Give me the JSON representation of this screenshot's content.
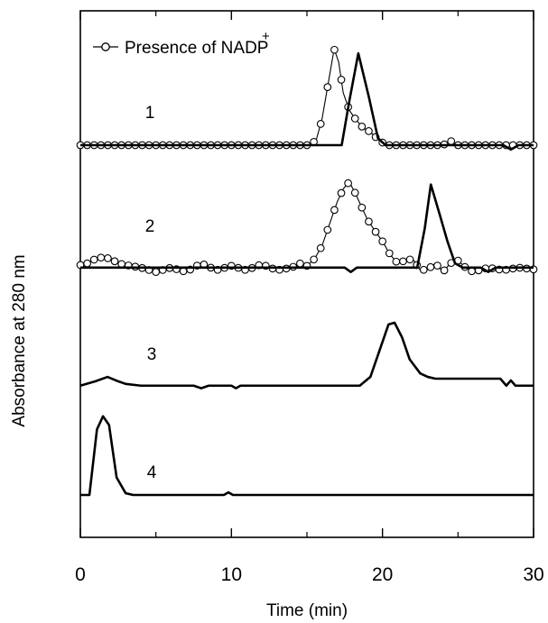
{
  "chart_data": {
    "type": "line",
    "title": "",
    "xlabel": "Time (min)",
    "ylabel": "Absorbance at 280 nm",
    "xlim": [
      0,
      30
    ],
    "x_ticks": [
      0,
      10,
      20,
      30
    ],
    "y_ticks_shown": false,
    "grid": false,
    "legend": {
      "placement": "top-left",
      "marker": "open-circle",
      "text": "Presence of NADP",
      "superscript": "+"
    },
    "traces": [
      {
        "label": "1",
        "baseline_offset": 4.0,
        "solid": {
          "style": "solid",
          "points": [
            [
              0,
              0
            ],
            [
              17.3,
              0
            ],
            [
              17.8,
              0.5
            ],
            [
              18.4,
              1.05
            ],
            [
              19.1,
              0.55
            ],
            [
              19.7,
              0.08
            ],
            [
              20.2,
              0
            ],
            [
              28,
              0
            ],
            [
              28.5,
              -0.05
            ],
            [
              29,
              0
            ],
            [
              30,
              0
            ]
          ]
        },
        "nadp": {
          "style": "open-circle-markers",
          "points": [
            [
              0,
              0
            ],
            [
              15,
              0
            ],
            [
              15.6,
              0.05
            ],
            [
              16,
              0.3
            ],
            [
              16.4,
              0.7
            ],
            [
              16.8,
              1.1
            ],
            [
              17.1,
              0.95
            ],
            [
              17.4,
              0.6
            ],
            [
              17.8,
              0.4
            ],
            [
              18.2,
              0.3
            ],
            [
              18.7,
              0.2
            ],
            [
              19.2,
              0.15
            ],
            [
              19.8,
              0.05
            ],
            [
              20.3,
              0
            ],
            [
              24,
              0
            ],
            [
              24.5,
              0.05
            ],
            [
              25,
              0
            ],
            [
              30,
              0
            ]
          ]
        }
      },
      {
        "label": "2",
        "baseline_offset": 2.6,
        "solid": {
          "style": "solid",
          "points": [
            [
              0,
              0
            ],
            [
              17.5,
              0
            ],
            [
              17.9,
              -0.05
            ],
            [
              18.3,
              0
            ],
            [
              22.3,
              0
            ],
            [
              22.8,
              0.45
            ],
            [
              23.2,
              0.95
            ],
            [
              23.8,
              0.6
            ],
            [
              24.3,
              0.3
            ],
            [
              24.8,
              0.05
            ],
            [
              25.3,
              0
            ],
            [
              26.5,
              0
            ],
            [
              27,
              -0.05
            ],
            [
              27.5,
              0
            ],
            [
              30,
              0
            ]
          ]
        },
        "nadp": {
          "style": "open-circle-markers",
          "points": [
            [
              0,
              0.03
            ],
            [
              0.5,
              0.05
            ],
            [
              1,
              0.1
            ],
            [
              1.5,
              0.12
            ],
            [
              2,
              0.1
            ],
            [
              2.5,
              0.05
            ],
            [
              3,
              0.03
            ],
            [
              4,
              0
            ],
            [
              5,
              -0.05
            ],
            [
              6,
              0
            ],
            [
              7,
              -0.05
            ],
            [
              8,
              0.05
            ],
            [
              9,
              -0.03
            ],
            [
              10,
              0.02
            ],
            [
              11,
              -0.03
            ],
            [
              12,
              0.04
            ],
            [
              13,
              -0.03
            ],
            [
              14,
              0
            ],
            [
              14.5,
              0.05
            ],
            [
              15,
              0.02
            ],
            [
              15.5,
              0.1
            ],
            [
              16,
              0.25
            ],
            [
              16.5,
              0.5
            ],
            [
              17,
              0.75
            ],
            [
              17.4,
              0.9
            ],
            [
              17.8,
              0.98
            ],
            [
              18.2,
              0.85
            ],
            [
              18.6,
              0.7
            ],
            [
              19,
              0.55
            ],
            [
              19.5,
              0.42
            ],
            [
              20,
              0.3
            ],
            [
              20.5,
              0.15
            ],
            [
              21,
              0.05
            ],
            [
              21.5,
              0.08
            ],
            [
              22,
              0.1
            ],
            [
              22.5,
              -0.03
            ],
            [
              23,
              -0.02
            ],
            [
              23.5,
              0.05
            ],
            [
              24,
              -0.05
            ],
            [
              24.5,
              0.05
            ],
            [
              25,
              0.08
            ],
            [
              25.5,
              0
            ],
            [
              26,
              -0.05
            ],
            [
              27,
              0
            ],
            [
              28,
              -0.03
            ],
            [
              29,
              0
            ],
            [
              30,
              -0.02
            ]
          ]
        }
      },
      {
        "label": "3",
        "baseline_offset": 1.25,
        "solid": {
          "style": "solid",
          "points": [
            [
              0,
              0
            ],
            [
              1,
              0.05
            ],
            [
              1.8,
              0.1
            ],
            [
              2.5,
              0.05
            ],
            [
              3,
              0.02
            ],
            [
              4,
              0
            ],
            [
              7.5,
              0
            ],
            [
              8,
              -0.03
            ],
            [
              8.5,
              0
            ],
            [
              10,
              0
            ],
            [
              10.3,
              -0.03
            ],
            [
              10.6,
              0
            ],
            [
              18.5,
              0
            ],
            [
              19.2,
              0.1
            ],
            [
              19.8,
              0.4
            ],
            [
              20.4,
              0.7
            ],
            [
              20.8,
              0.72
            ],
            [
              21.3,
              0.55
            ],
            [
              21.8,
              0.3
            ],
            [
              22.5,
              0.14
            ],
            [
              23,
              0.1
            ],
            [
              23.5,
              0.08
            ],
            [
              24.5,
              0.08
            ],
            [
              27.8,
              0.08
            ],
            [
              28.2,
              0
            ],
            [
              28.5,
              0.06
            ],
            [
              28.8,
              0
            ],
            [
              30,
              0
            ]
          ]
        }
      },
      {
        "label": "4",
        "baseline_offset": 0,
        "solid": {
          "style": "solid",
          "points": [
            [
              0,
              0
            ],
            [
              0.6,
              0
            ],
            [
              1.1,
              0.75
            ],
            [
              1.5,
              0.9
            ],
            [
              1.9,
              0.8
            ],
            [
              2.4,
              0.2
            ],
            [
              3,
              0.02
            ],
            [
              3.5,
              0
            ],
            [
              9.5,
              0
            ],
            [
              9.8,
              0.03
            ],
            [
              10.1,
              0
            ],
            [
              30,
              0
            ]
          ]
        }
      }
    ]
  }
}
